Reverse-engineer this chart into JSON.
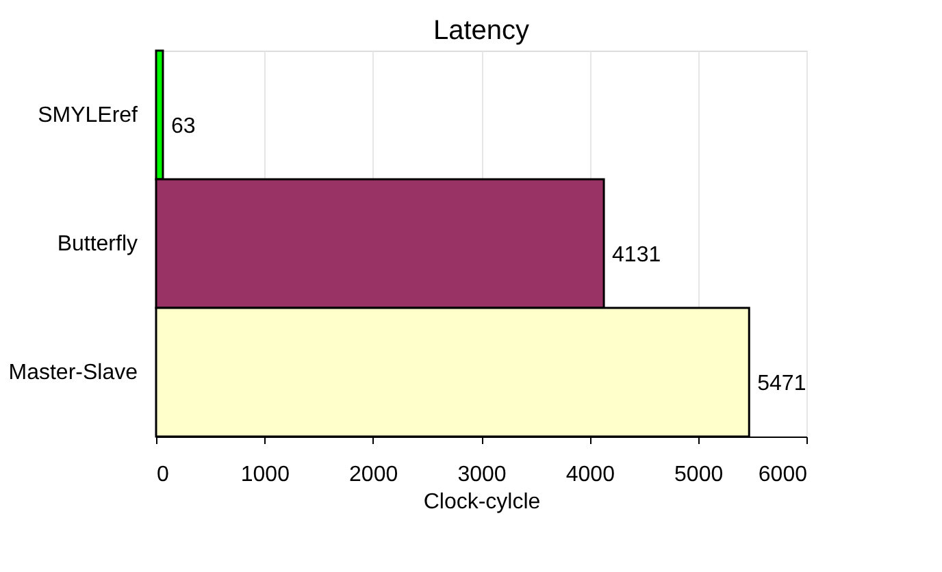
{
  "chart_data": {
    "type": "bar",
    "orientation": "horizontal",
    "title": "Latency",
    "xlabel": "Clock-cylcle",
    "categories": [
      "SMYLEref",
      "Butterfly",
      "Master-Slave"
    ],
    "values": [
      63,
      4131,
      5471
    ],
    "colors": [
      "#00ff00",
      "#993366",
      "#ffffcc"
    ],
    "xlim": [
      0,
      6000
    ],
    "xticks": [
      0,
      1000,
      2000,
      3000,
      4000,
      5000,
      6000
    ],
    "grid": "x",
    "data_labels": true
  }
}
